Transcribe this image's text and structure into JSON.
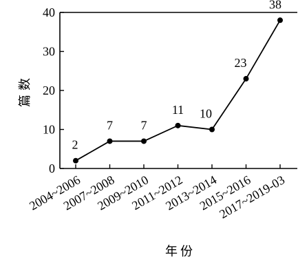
{
  "chart_data": {
    "type": "line",
    "categories": [
      "2004~2006",
      "2007~2008",
      "2009~2010",
      "2011~2012",
      "2013~2014",
      "2015~2016",
      "2017~2019-03"
    ],
    "series": [
      {
        "values": [
          2,
          7,
          7,
          11,
          10,
          23,
          38
        ]
      }
    ],
    "data_labels": [
      "2",
      "7",
      "7",
      "11",
      "10",
      "23",
      "38"
    ],
    "y_ticks": [
      0,
      10,
      20,
      30,
      40
    ],
    "ylim": [
      0,
      40
    ],
    "ylabel": "篇数",
    "xlabel": "年份",
    "grid": false,
    "color": "#000000"
  }
}
